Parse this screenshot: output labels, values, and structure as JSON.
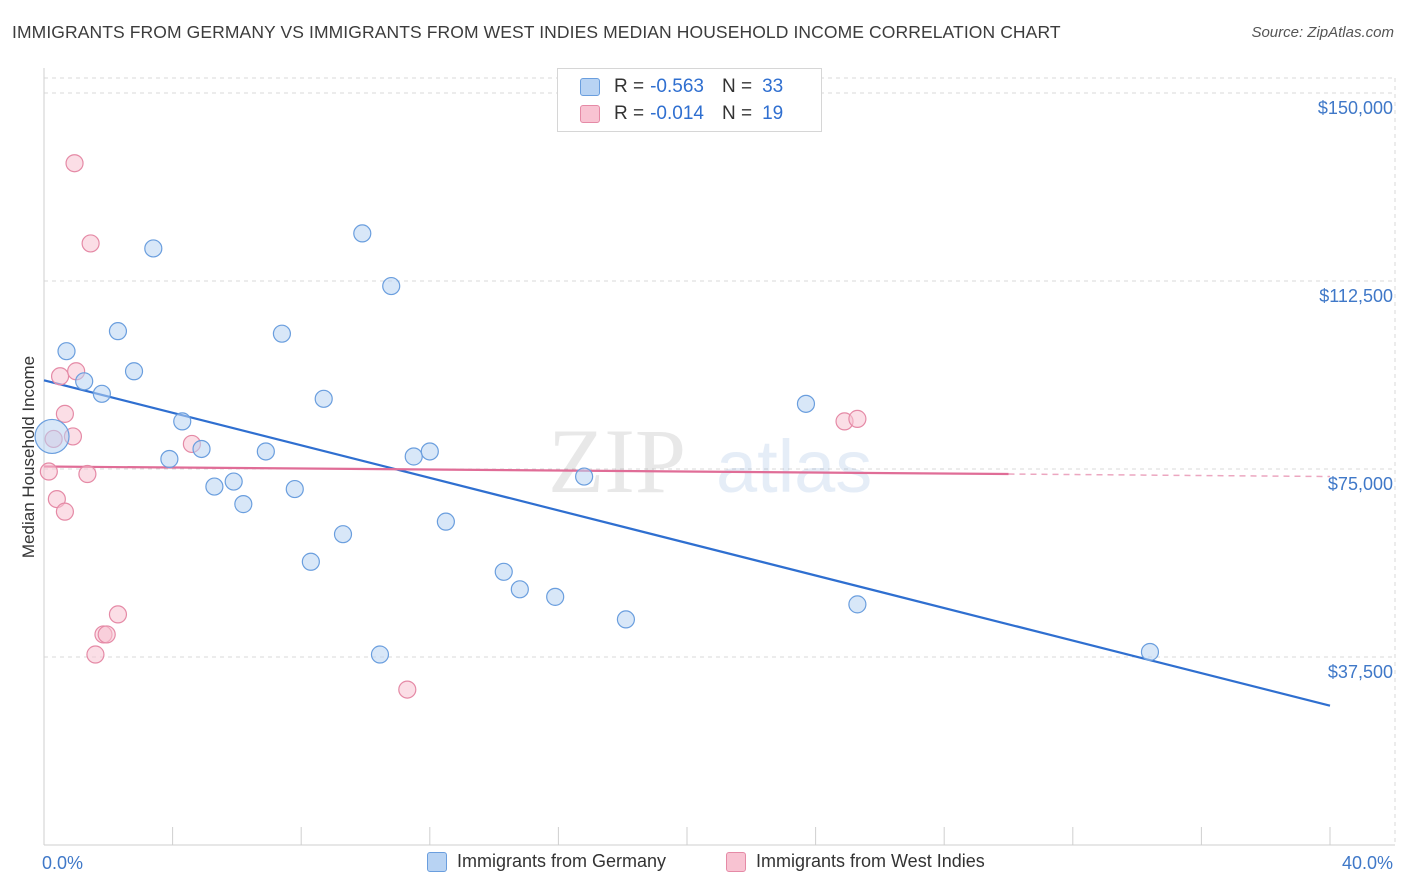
{
  "title": "IMMIGRANTS FROM GERMANY VS IMMIGRANTS FROM WEST INDIES MEDIAN HOUSEHOLD INCOME CORRELATION CHART",
  "source": "Source: ZipAtlas.com",
  "watermark": {
    "zip": "ZIP",
    "atlas": "atlas"
  },
  "legend": {
    "rows": [
      {
        "r_label": "R =",
        "r_value": "-0.563",
        "n_label": "N =",
        "n_value": "33"
      },
      {
        "r_label": "R =",
        "r_value": "-0.014",
        "n_label": "N =",
        "n_value": "19"
      }
    ]
  },
  "colors": {
    "germany_fill": "#b8d3f3",
    "germany_stroke": "#6a9ede",
    "germany_line": "#2f6fd0",
    "westindies_fill": "#f8c3d2",
    "westindies_stroke": "#e58aa6",
    "westindies_line": "#e06d97",
    "grid": "#d9d9d9",
    "tick_text": "#3f78c8"
  },
  "chart_data": {
    "type": "scatter",
    "title": "IMMIGRANTS FROM GERMANY VS IMMIGRANTS FROM WEST INDIES MEDIAN HOUSEHOLD INCOME CORRELATION CHART",
    "xlabel": "",
    "ylabel": "Median Household Income",
    "xlim": [
      0,
      40
    ],
    "ylim": [
      0,
      153000
    ],
    "x_tick_labels": [
      "0.0%",
      "40.0%"
    ],
    "y_ticks": [
      37500,
      75000,
      112500,
      150000
    ],
    "y_tick_labels": [
      "$37,500",
      "$75,000",
      "$112,500",
      "$150,000"
    ],
    "grid": true,
    "legend_position": "top-center",
    "series": [
      {
        "name": "Immigrants from Germany",
        "r": -0.563,
        "n": 33,
        "points": [
          {
            "x": 0.25,
            "y": 81500,
            "big": true
          },
          {
            "x": 0.7,
            "y": 98500
          },
          {
            "x": 1.25,
            "y": 92500
          },
          {
            "x": 1.8,
            "y": 90000
          },
          {
            "x": 2.3,
            "y": 102500
          },
          {
            "x": 2.8,
            "y": 94500
          },
          {
            "x": 3.4,
            "y": 119000
          },
          {
            "x": 3.9,
            "y": 77000
          },
          {
            "x": 4.3,
            "y": 84500
          },
          {
            "x": 4.9,
            "y": 79000
          },
          {
            "x": 5.3,
            "y": 71500
          },
          {
            "x": 5.9,
            "y": 72500
          },
          {
            "x": 6.2,
            "y": 68000
          },
          {
            "x": 6.9,
            "y": 78500
          },
          {
            "x": 7.4,
            "y": 102000
          },
          {
            "x": 7.8,
            "y": 71000
          },
          {
            "x": 8.3,
            "y": 56500
          },
          {
            "x": 8.7,
            "y": 89000
          },
          {
            "x": 9.3,
            "y": 62000
          },
          {
            "x": 9.9,
            "y": 122000
          },
          {
            "x": 10.45,
            "y": 38000
          },
          {
            "x": 10.8,
            "y": 111500
          },
          {
            "x": 11.5,
            "y": 77500
          },
          {
            "x": 12.0,
            "y": 78500
          },
          {
            "x": 12.5,
            "y": 64500
          },
          {
            "x": 14.3,
            "y": 54500
          },
          {
            "x": 14.8,
            "y": 51000
          },
          {
            "x": 15.9,
            "y": 49500
          },
          {
            "x": 16.8,
            "y": 73500
          },
          {
            "x": 18.1,
            "y": 45000
          },
          {
            "x": 23.7,
            "y": 88000
          },
          {
            "x": 25.3,
            "y": 48000
          },
          {
            "x": 34.4,
            "y": 38500
          }
        ],
        "trend": {
          "x0": 0,
          "y0": 92700,
          "x1": 40,
          "y1": 27800
        }
      },
      {
        "name": "Immigrants from West Indies",
        "r": -0.014,
        "n": 19,
        "points": [
          {
            "x": 0.15,
            "y": 74500
          },
          {
            "x": 0.3,
            "y": 81000
          },
          {
            "x": 0.4,
            "y": 69000
          },
          {
            "x": 0.5,
            "y": 93500
          },
          {
            "x": 0.65,
            "y": 66500
          },
          {
            "x": 0.65,
            "y": 86000
          },
          {
            "x": 0.9,
            "y": 81500
          },
          {
            "x": 0.95,
            "y": 136000
          },
          {
            "x": 1.0,
            "y": 94500
          },
          {
            "x": 1.35,
            "y": 74000
          },
          {
            "x": 1.45,
            "y": 120000
          },
          {
            "x": 1.6,
            "y": 38000
          },
          {
            "x": 1.85,
            "y": 42000
          },
          {
            "x": 1.95,
            "y": 42000
          },
          {
            "x": 2.3,
            "y": 46000
          },
          {
            "x": 4.6,
            "y": 80000
          },
          {
            "x": 11.3,
            "y": 31000
          },
          {
            "x": 24.9,
            "y": 84500
          },
          {
            "x": 25.3,
            "y": 85000
          }
        ],
        "trend": {
          "x0": 0,
          "y0": 75500,
          "x1": 30,
          "y1": 74000,
          "dashed_to": 40,
          "dashed_y": 73500
        }
      }
    ]
  }
}
